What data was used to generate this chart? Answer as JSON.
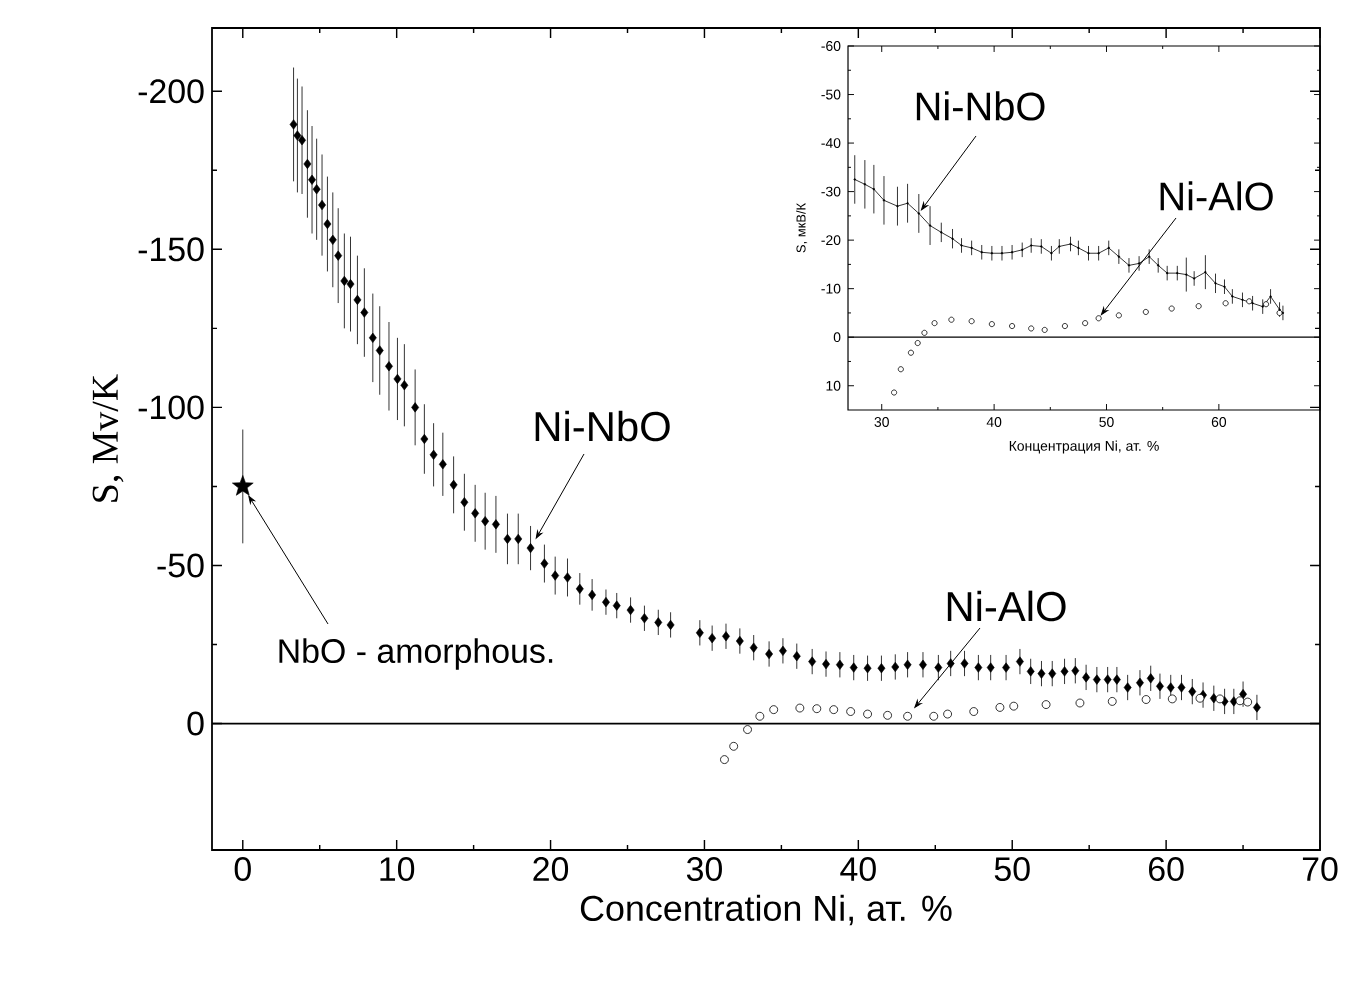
{
  "chart_data": [
    {
      "type": "scatter",
      "xlabel": "Concentration Ni, ат. %",
      "ylabel": "S, Mv/K",
      "xlim": [
        -2,
        70
      ],
      "ylim": [
        40,
        -220
      ],
      "xticks": [
        0,
        10,
        20,
        30,
        40,
        50,
        60,
        70
      ],
      "yticks": [
        -200,
        -150,
        -100,
        -50,
        0
      ],
      "series": [
        {
          "marker": "star",
          "color": "#000000",
          "x": [
            0
          ],
          "values": [
            -75
          ],
          "errors": [
            18
          ]
        },
        {
          "marker": "diamond",
          "color": "#000000",
          "x": [
            3.3,
            3.55,
            3.85,
            4.2,
            4.5,
            4.8,
            5.15,
            5.5,
            5.85,
            6.2,
            6.6,
            7.0,
            7.45,
            7.9,
            8.45,
            8.9,
            9.5,
            10.05,
            10.5,
            11.2,
            11.8,
            12.4,
            13.0,
            13.7,
            14.4,
            15.1,
            15.75,
            16.45,
            17.2,
            17.9,
            18.7,
            19.6,
            20.3,
            21.1,
            21.9,
            22.7,
            23.6,
            24.3,
            25.2,
            26.1,
            27.0,
            27.8,
            29.7,
            30.5,
            31.4,
            32.3,
            33.2,
            34.2,
            35.1,
            36.0,
            37.0,
            37.9,
            38.8,
            39.7,
            40.6,
            41.5,
            42.4,
            43.2,
            44.2,
            45.2,
            46.0,
            46.9,
            47.8,
            48.6,
            49.6,
            50.5,
            51.2,
            51.9,
            52.6,
            53.4,
            54.1,
            54.8,
            55.5,
            56.2,
            56.8,
            57.5,
            58.3,
            59.0,
            59.6,
            60.3,
            61.0,
            61.7,
            62.4,
            63.1,
            63.8,
            64.4,
            65.0,
            65.9
          ],
          "values": [
            -189.5,
            -186,
            -184.5,
            -177,
            -172,
            -169,
            -164,
            -158,
            -153,
            -148,
            -140,
            -139,
            -134,
            -130,
            -122,
            -118,
            -113,
            -109,
            -107,
            -100,
            -90,
            -85,
            -82,
            -75.5,
            -70,
            -66.5,
            -64,
            -63,
            -58.4,
            -58.4,
            -55.5,
            -50.6,
            -46.8,
            -46.2,
            -42.6,
            -40.7,
            -38.4,
            -37.3,
            -35.9,
            -33.3,
            -32,
            -31.2,
            -28.7,
            -27,
            -27.6,
            -26.1,
            -24,
            -22,
            -23,
            -21.3,
            -19.6,
            -18.8,
            -18.6,
            -17.7,
            -17.5,
            -17.5,
            -17.9,
            -18.6,
            -18.6,
            -17.7,
            -19,
            -19,
            -17.7,
            -17.7,
            -17.7,
            -19.6,
            -16.5,
            -15.8,
            -15.8,
            -16.5,
            -16.7,
            -14.6,
            -13.9,
            -13.9,
            -13.9,
            -11.4,
            -12.9,
            -14.3,
            -11.8,
            -11.4,
            -11.4,
            -10.1,
            -9,
            -8,
            -7,
            -7,
            -9.3,
            -5.1
          ],
          "errors": [
            18,
            18,
            17,
            17,
            17,
            16,
            16,
            15,
            15,
            15,
            15,
            15,
            14,
            14,
            14,
            14,
            14,
            13,
            13,
            12,
            11,
            10,
            10,
            9,
            9,
            9,
            9,
            9,
            8,
            8,
            7,
            6,
            6,
            6,
            5,
            5,
            4,
            4,
            4,
            4,
            4,
            4,
            4,
            4,
            4,
            4,
            4,
            4,
            4,
            4,
            4,
            4,
            4,
            4,
            4,
            4,
            4,
            4,
            4,
            4,
            4,
            4,
            4,
            4,
            4,
            4,
            4,
            4,
            4,
            4,
            4,
            4,
            4,
            4,
            4,
            4,
            4,
            4,
            4,
            4,
            4,
            4,
            4,
            4,
            4,
            4,
            4,
            4
          ]
        },
        {
          "marker": "circle",
          "color": "#000000",
          "x": [
            31.3,
            31.9,
            32.8,
            33.6,
            34.5,
            36.2,
            37.3,
            38.4,
            39.5,
            40.6,
            41.9,
            43.2,
            44.9,
            45.8,
            47.5,
            49.2,
            50.1,
            52.2,
            54.4,
            56.5,
            58.7,
            60.4,
            62.2,
            63.5,
            64.8,
            65.3
          ],
          "values": [
            11.4,
            7.2,
            1.9,
            -2.3,
            -4.4,
            -4.9,
            -4.7,
            -4.4,
            -3.8,
            -3,
            -2.6,
            -2.3,
            -2.3,
            -3,
            -3.8,
            -5.1,
            -5.5,
            -6,
            -6.5,
            -7,
            -7.6,
            -7.8,
            -8,
            -7.8,
            -7.2,
            -6.8
          ]
        }
      ],
      "ref_lines": [
        {
          "axis": "y",
          "value": 0
        }
      ],
      "annotations": [
        {
          "text": "Ni-NbO",
          "x": 18.7,
          "y": -55.5
        },
        {
          "text": "NbO - amorphous.",
          "x": 0,
          "y": -75
        },
        {
          "text": "Ni-AlO",
          "x": 43.2,
          "y": -2.3
        }
      ]
    },
    {
      "type": "scatter",
      "xlabel": "Концентрация Ni, ат. %",
      "ylabel": "S, мкВ/К",
      "xlim": [
        27,
        69
      ],
      "ylim": [
        15,
        -60
      ],
      "xticks": [
        30,
        40,
        50,
        60
      ],
      "yticks": [
        -60,
        -50,
        -40,
        -30,
        -20,
        -10,
        0,
        10
      ],
      "series": [
        {
          "type": "line",
          "marker": "circle",
          "color": "#000000",
          "x": [
            27.6,
            28.5,
            29.3,
            30.2,
            31.4,
            32.3,
            33.3,
            34.3,
            35.3,
            36.3,
            37.1,
            38.0,
            38.9,
            39.8,
            40.7,
            41.6,
            42.5,
            43.3,
            44.2,
            45.1,
            45.8,
            46.8,
            47.5,
            48.4,
            49.3,
            50.2,
            51.1,
            52.0,
            52.9,
            53.8,
            54.6,
            55.4,
            56.3,
            57.1,
            57.8,
            58.8,
            59.7,
            60.5,
            61.2,
            62.1,
            63.0,
            63.9,
            64.6,
            65.4,
            65.7
          ],
          "values": [
            -32.5,
            -31.5,
            -30.5,
            -28.2,
            -27,
            -27.6,
            -25.5,
            -23,
            -21.6,
            -20.3,
            -18.9,
            -18.4,
            -17.5,
            -17.3,
            -17.3,
            -17.5,
            -18,
            -18.9,
            -18.7,
            -17.3,
            -18.7,
            -19.2,
            -18.4,
            -17.3,
            -17.3,
            -18.4,
            -16.6,
            -14.8,
            -15.2,
            -16.6,
            -14.8,
            -13.2,
            -13.2,
            -12.9,
            -12.1,
            -13.4,
            -11.1,
            -10.4,
            -8.4,
            -7.7,
            -7,
            -6.3,
            -8.4,
            -5.7,
            -5
          ],
          "errors": [
            5,
            5,
            5,
            5,
            4,
            4,
            4,
            4,
            2,
            2,
            1.5,
            1.5,
            1.5,
            1.5,
            1.5,
            1.5,
            1.5,
            1.5,
            1.5,
            1.5,
            1.5,
            1.5,
            1.5,
            1.5,
            1.5,
            1.5,
            1.5,
            1.5,
            1.5,
            1.5,
            1.5,
            1.5,
            1.5,
            3.5,
            1.5,
            3.5,
            2,
            1.5,
            1.5,
            1.5,
            1.5,
            1.5,
            1.5,
            1.5,
            1.5
          ]
        },
        {
          "marker": "circle",
          "color": "#000000",
          "x": [
            31.1,
            31.7,
            32.6,
            33.2,
            33.8,
            34.7,
            36.2,
            38.0,
            39.8,
            41.6,
            43.3,
            44.5,
            46.3,
            48.1,
            49.3,
            51.1,
            53.5,
            55.8,
            58.2,
            60.6,
            62.7,
            64.2,
            65.4
          ],
          "values": [
            11.4,
            6.6,
            3.2,
            1.2,
            -0.9,
            -2.9,
            -3.6,
            -3.3,
            -2.7,
            -2.3,
            -1.8,
            -1.5,
            -2.3,
            -2.9,
            -3.9,
            -4.5,
            -5.2,
            -5.9,
            -6.4,
            -7,
            -7.4,
            -6.8,
            -5
          ]
        }
      ],
      "ref_lines": [
        {
          "axis": "y",
          "value": 0
        }
      ],
      "annotations": [
        {
          "text": "Ni-NbO",
          "x": 33.3,
          "y": -25.5
        },
        {
          "text": "Ni-AlO",
          "x": 49.3,
          "y": -3.9
        }
      ]
    }
  ]
}
